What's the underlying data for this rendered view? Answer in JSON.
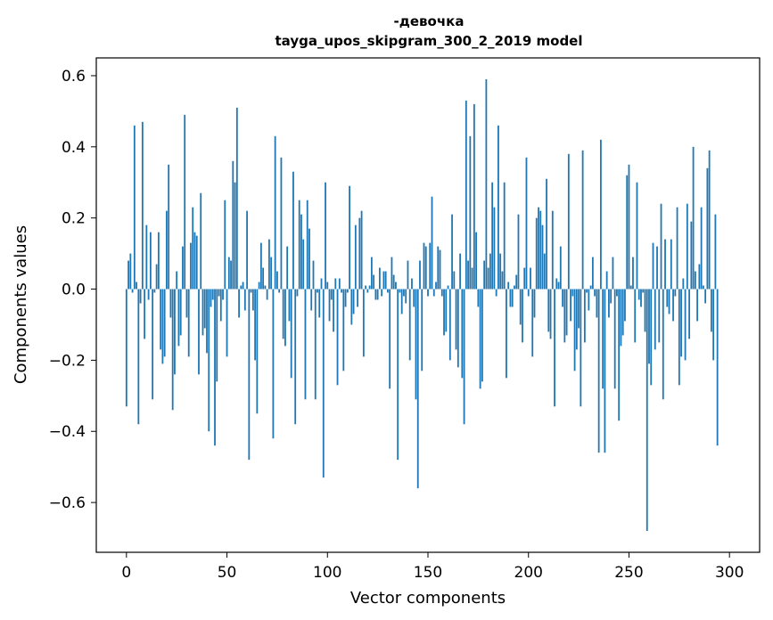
{
  "chart_data": {
    "type": "bar",
    "title_line1": "-девочка",
    "title_line2": "tayga_upos_skipgram_300_2_2019 model",
    "xlabel": "Vector components",
    "ylabel": "Components values",
    "xlim": [
      -15,
      315
    ],
    "ylim": [
      -0.74,
      0.65
    ],
    "xticks": [
      0,
      50,
      100,
      150,
      200,
      250,
      300
    ],
    "xtick_labels": [
      "0",
      "50",
      "100",
      "150",
      "200",
      "250",
      "300"
    ],
    "yticks": [
      -0.6,
      -0.4,
      -0.2,
      0.0,
      0.2,
      0.4,
      0.6
    ],
    "ytick_labels": [
      "−0.6",
      "−0.4",
      "−0.2",
      "0.0",
      "0.2",
      "0.4",
      "0.6"
    ],
    "bar_color": "#1f77b4",
    "grid": false,
    "values": [
      -0.33,
      0.08,
      0.1,
      -0.01,
      0.46,
      0.02,
      -0.38,
      -0.04,
      0.47,
      -0.14,
      0.18,
      -0.03,
      0.16,
      -0.31,
      -0.01,
      0.07,
      0.16,
      -0.17,
      -0.21,
      -0.19,
      0.22,
      0.35,
      -0.08,
      -0.34,
      -0.24,
      0.05,
      -0.16,
      -0.13,
      0.12,
      0.49,
      -0.08,
      -0.19,
      0.13,
      0.23,
      0.16,
      0.15,
      -0.24,
      0.27,
      -0.13,
      -0.11,
      -0.18,
      -0.4,
      -0.05,
      -0.03,
      -0.44,
      -0.26,
      -0.02,
      -0.09,
      -0.03,
      0.25,
      -0.19,
      0.09,
      0.08,
      0.36,
      0.3,
      0.51,
      -0.08,
      0.01,
      0.02,
      -0.06,
      0.22,
      -0.48,
      -0.01,
      -0.06,
      -0.2,
      -0.35,
      0.02,
      0.13,
      0.06,
      0.01,
      -0.03,
      0.14,
      0.09,
      -0.42,
      0.43,
      0.05,
      -0.01,
      0.37,
      -0.14,
      -0.16,
      0.12,
      -0.09,
      -0.25,
      0.33,
      -0.38,
      -0.02,
      0.25,
      0.21,
      0.14,
      -0.31,
      0.25,
      0.17,
      -0.06,
      0.08,
      -0.31,
      -0.01,
      -0.08,
      0.03,
      -0.53,
      0.3,
      0.02,
      -0.09,
      -0.03,
      -0.12,
      0.03,
      -0.27,
      0.03,
      -0.01,
      -0.23,
      -0.05,
      -0.01,
      0.29,
      -0.1,
      -0.07,
      0.18,
      -0.05,
      0.2,
      0.22,
      -0.19,
      0.01,
      -0.01,
      0.01,
      0.09,
      0.04,
      -0.03,
      -0.03,
      0.06,
      -0.02,
      0.05,
      0.05,
      -0.01,
      -0.28,
      0.09,
      0.04,
      0.02,
      -0.48,
      -0.01,
      -0.07,
      -0.02,
      -0.04,
      0.08,
      -0.2,
      0.03,
      -0.05,
      -0.31,
      -0.56,
      0.08,
      -0.23,
      0.13,
      0.12,
      -0.02,
      0.13,
      0.26,
      -0.02,
      0.02,
      0.12,
      0.11,
      -0.02,
      -0.13,
      -0.12,
      0.01,
      -0.2,
      0.21,
      0.05,
      -0.17,
      -0.22,
      0.1,
      -0.25,
      -0.38,
      0.53,
      0.08,
      0.43,
      0.06,
      0.52,
      0.16,
      -0.05,
      -0.28,
      -0.26,
      0.08,
      0.59,
      0.06,
      0.1,
      0.3,
      0.23,
      -0.02,
      0.46,
      0.1,
      0.05,
      0.3,
      -0.25,
      0.02,
      -0.05,
      -0.05,
      0.01,
      0.04,
      0.21,
      -0.1,
      -0.15,
      0.06,
      0.37,
      -0.02,
      0.06,
      -0.19,
      -0.08,
      0.2,
      0.23,
      0.22,
      0.18,
      0.1,
      0.31,
      -0.12,
      -0.14,
      0.22,
      -0.33,
      0.03,
      0.02,
      0.12,
      -0.05,
      -0.15,
      -0.13,
      0.38,
      -0.09,
      -0.02,
      -0.23,
      -0.17,
      -0.11,
      -0.33,
      0.39,
      -0.15,
      -0.01,
      -0.06,
      0.01,
      0.09,
      -0.02,
      -0.08,
      -0.46,
      0.42,
      -0.28,
      -0.46,
      0.05,
      -0.08,
      -0.04,
      0.09,
      -0.28,
      -0.02,
      -0.37,
      -0.16,
      -0.13,
      -0.09,
      0.32,
      0.35,
      0.01,
      0.09,
      -0.15,
      0.3,
      -0.03,
      -0.05,
      -0.01,
      -0.12,
      -0.68,
      -0.21,
      -0.27,
      0.13,
      -0.17,
      0.12,
      -0.15,
      0.24,
      -0.31,
      0.14,
      -0.05,
      -0.07,
      0.14,
      -0.09,
      -0.02,
      0.23,
      -0.27,
      -0.19,
      0.03,
      -0.2,
      0.24,
      -0.14,
      0.19,
      0.4,
      0.05,
      -0.09,
      0.07,
      0.23,
      0.01,
      -0.04,
      0.34,
      0.39,
      -0.12,
      -0.2,
      0.21,
      -0.44
    ]
  }
}
